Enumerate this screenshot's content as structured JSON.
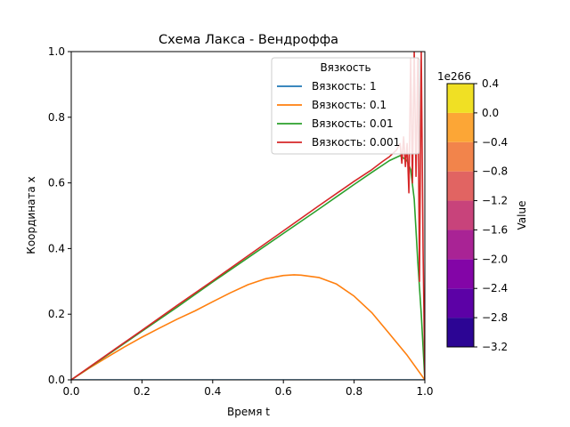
{
  "chart_data": {
    "type": "line",
    "title": "Схема Лакса - Вендроффа",
    "xlabel": "Время t",
    "ylabel": "Координата x",
    "xlim": [
      0,
      1
    ],
    "ylim": [
      0,
      1
    ],
    "x_ticks": [
      "0.0",
      "0.2",
      "0.4",
      "0.6",
      "0.8",
      "1.0"
    ],
    "y_ticks": [
      "0.0",
      "0.2",
      "0.4",
      "0.6",
      "0.8",
      "1.0"
    ],
    "grid": false,
    "legend": {
      "title": "Вязкость",
      "placement": "top-right"
    },
    "series": [
      {
        "name": "Вязкость: 1",
        "color": "#1f77b4",
        "x": [
          0,
          1
        ],
        "y": [
          0,
          0
        ]
      },
      {
        "name": "Вязкость: 0.1",
        "color": "#ff7f0e",
        "x": [
          0,
          0.05,
          0.1,
          0.15,
          0.2,
          0.25,
          0.3,
          0.35,
          0.4,
          0.45,
          0.5,
          0.55,
          0.6,
          0.63,
          0.65,
          0.7,
          0.75,
          0.8,
          0.85,
          0.9,
          0.95,
          1.0
        ],
        "y": [
          0,
          0.035,
          0.068,
          0.1,
          0.13,
          0.158,
          0.185,
          0.21,
          0.238,
          0.265,
          0.29,
          0.308,
          0.318,
          0.32,
          0.319,
          0.312,
          0.292,
          0.255,
          0.205,
          0.14,
          0.075,
          0
        ]
      },
      {
        "name": "Вязкость: 0.01",
        "color": "#2ca02c",
        "x": [
          0,
          0.1,
          0.2,
          0.3,
          0.4,
          0.5,
          0.6,
          0.7,
          0.8,
          0.85,
          0.9,
          0.93,
          0.95,
          0.96,
          0.97,
          0.98,
          0.99,
          1.0
        ],
        "y": [
          0,
          0.074,
          0.148,
          0.222,
          0.298,
          0.372,
          0.446,
          0.52,
          0.595,
          0.632,
          0.668,
          0.683,
          0.668,
          0.64,
          0.55,
          0.36,
          0.2,
          0
        ]
      },
      {
        "name": "Вязкость: 0.001",
        "color": "#d62728",
        "x": [
          0,
          0.1,
          0.2,
          0.3,
          0.4,
          0.5,
          0.6,
          0.7,
          0.8,
          0.85,
          0.88,
          0.9,
          0.92,
          0.93,
          0.935,
          0.94,
          0.945,
          0.95,
          0.955,
          0.96,
          0.965,
          0.97,
          0.975,
          0.98,
          0.985,
          0.99,
          0.995,
          1.0
        ],
        "y": [
          0,
          0.076,
          0.151,
          0.227,
          0.302,
          0.378,
          0.454,
          0.53,
          0.605,
          0.64,
          0.665,
          0.68,
          0.7,
          0.72,
          0.66,
          0.74,
          0.65,
          0.72,
          0.57,
          0.98,
          0.6,
          1.0,
          0.62,
          0.98,
          0.3,
          1.0,
          0.4,
          0
        ]
      }
    ],
    "colorbar": {
      "label": "Value",
      "offset_text": "1e266",
      "ticks": [
        "0.4",
        "0.0",
        "−0.4",
        "−0.8",
        "−1.2",
        "−1.6",
        "−2.0",
        "−2.4",
        "−2.8",
        "−3.2"
      ],
      "range": [
        -3.2,
        0.4
      ],
      "bands": [
        {
          "from": -3.2,
          "to": -2.8,
          "color": "#2c0594"
        },
        {
          "from": -2.8,
          "to": -2.4,
          "color": "#5c01a6"
        },
        {
          "from": -2.4,
          "to": -2.0,
          "color": "#8305a7"
        },
        {
          "from": -2.0,
          "to": -1.6,
          "color": "#a92395"
        },
        {
          "from": -1.6,
          "to": -1.2,
          "color": "#c8437b"
        },
        {
          "from": -1.2,
          "to": -0.8,
          "color": "#e16462"
        },
        {
          "from": -0.8,
          "to": -0.4,
          "color": "#f2844b"
        },
        {
          "from": -0.4,
          "to": 0.0,
          "color": "#fca636"
        },
        {
          "from": 0.0,
          "to": 0.4,
          "color": "#f0e024"
        }
      ]
    }
  }
}
